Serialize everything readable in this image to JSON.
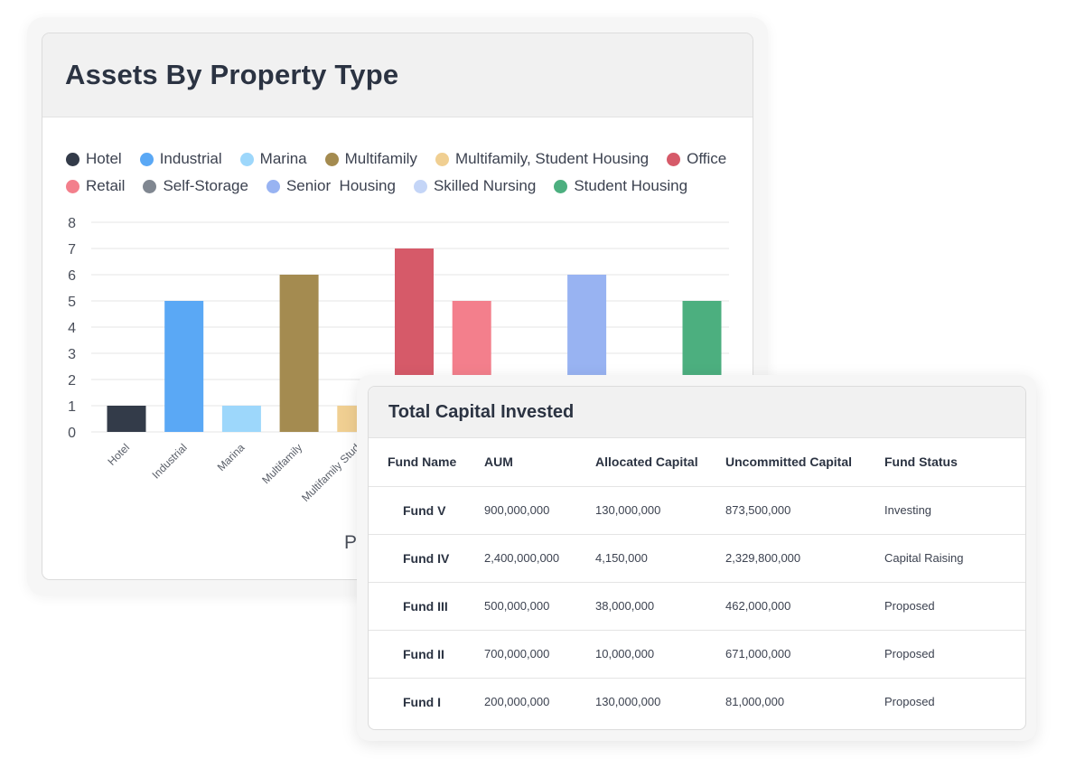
{
  "chart_card": {
    "title": "Assets By Property Type",
    "x_axis_title_partial": "P"
  },
  "chart_data": {
    "type": "bar",
    "title": "Assets By Property Type",
    "categories": [
      "Hotel",
      "Industrial",
      "Marina",
      "Multifamily",
      "Multifamily, Student Housing",
      "Office",
      "Retail",
      "Self-Storage",
      "Senior Housing",
      "Skilled Nursing",
      "Student Housing"
    ],
    "tick_labels": [
      "Hotel",
      "Industrial",
      "Marina",
      "Multifamily",
      "Multifamily Stud"
    ],
    "values": [
      1,
      5,
      1,
      6,
      1,
      7,
      5,
      0,
      6,
      0,
      5
    ],
    "colors": [
      "#333b49",
      "#5aa8f5",
      "#9dd7fb",
      "#a48b50",
      "#f0cf92",
      "#d65a69",
      "#f37f8c",
      "#808791",
      "#98b3f2",
      "#c4d5f7",
      "#4caf7f"
    ],
    "ylim": [
      0,
      8
    ],
    "yticks": [
      0,
      1,
      2,
      3,
      4,
      5,
      6,
      7,
      8
    ],
    "grid": true,
    "legend": {
      "placement": "top",
      "rows": [
        [
          {
            "label": "Hotel",
            "color": "#333b49"
          },
          {
            "label": "Industrial",
            "color": "#5aa8f5"
          },
          {
            "label": "Marina",
            "color": "#9dd7fb"
          },
          {
            "label": "Multifamily",
            "color": "#a48b50"
          },
          {
            "label": "Multifamily, Student Housing",
            "color": "#f0cf92"
          },
          {
            "label": "Office",
            "color": "#d65a69"
          }
        ],
        [
          {
            "label": "Retail",
            "color": "#f37f8c"
          },
          {
            "label": "Self-Storage",
            "color": "#808791"
          },
          {
            "label": "Senior  Housing",
            "color": "#98b3f2"
          },
          {
            "label": "Skilled Nursing",
            "color": "#c4d5f7"
          },
          {
            "label": "Student Housing",
            "color": "#4caf7f"
          }
        ]
      ]
    }
  },
  "table_card": {
    "title": "Total Capital Invested",
    "columns": [
      "Fund Name",
      "AUM",
      "Allocated Capital",
      "Uncommitted Capital",
      "Fund Status"
    ],
    "rows": [
      [
        "Fund V",
        "900,000,000",
        "130,000,000",
        "873,500,000",
        "Investing"
      ],
      [
        "Fund IV",
        "2,400,000,000",
        "4,150,000",
        "2,329,800,000",
        "Capital Raising"
      ],
      [
        "Fund III",
        "500,000,000",
        "38,000,000",
        "462,000,000",
        "Proposed"
      ],
      [
        "Fund II",
        "700,000,000",
        "10,000,000",
        "671,000,000",
        "Proposed"
      ],
      [
        "Fund I",
        "200,000,000",
        "130,000,000",
        "81,000,000",
        "Proposed"
      ]
    ]
  }
}
